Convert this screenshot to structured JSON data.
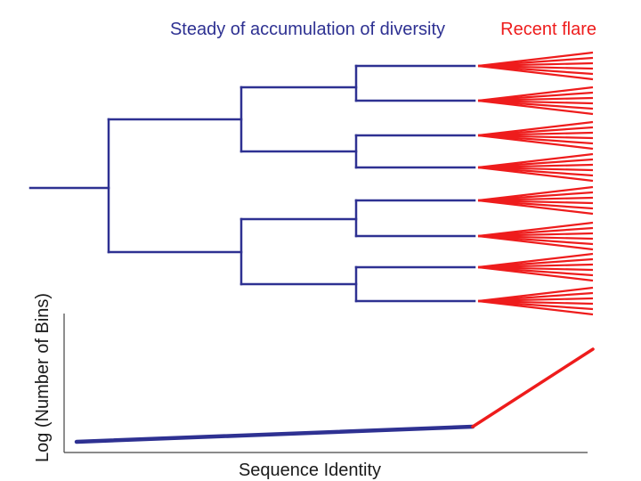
{
  "titles": {
    "steady": "Steady of accumulation of diversity",
    "flare": "Recent flare"
  },
  "axes": {
    "xlabel": "Sequence Identity",
    "ylabel": "Log (Number of Bins)"
  },
  "colors": {
    "steady": "#2e3192",
    "flare": "#ee1c1c",
    "axis": "#444444",
    "text": "#1a1a1a"
  },
  "tree": {
    "leaves": 8,
    "flare_rays_per_leaf": 6
  }
}
